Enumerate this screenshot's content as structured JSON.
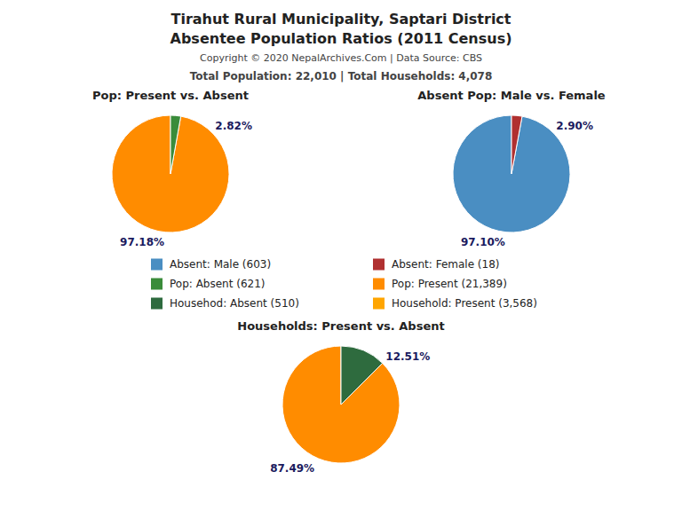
{
  "title": "Tirahut Rural Municipality, Saptari District",
  "subtitle": "Absentee Population Ratios (2011 Census)",
  "annotations": [
    "Copyright © 2020 NepalArchives.Com | Data Source: CBS",
    "Total Population: 22,010 | Total Households: 4,078"
  ],
  "chart_data": [
    {
      "type": "pie",
      "title": "Pop: Present vs. Absent",
      "values": [
        97.18,
        2.82
      ],
      "value_labels": [
        "97.18%",
        "2.82%"
      ],
      "colors": [
        "#FF8C00",
        "#3A8C3A"
      ],
      "data_labels": true
    },
    {
      "type": "pie",
      "title": "Absent Pop: Male vs. Female",
      "values": [
        97.1,
        2.9
      ],
      "value_labels": [
        "97.10%",
        "2.90%"
      ],
      "colors": [
        "#4A8EC2",
        "#B03030"
      ],
      "data_labels": true
    },
    {
      "type": "pie",
      "title": "Households: Present vs. Absent",
      "values": [
        87.49,
        12.51
      ],
      "value_labels": [
        "87.49%",
        "12.51%"
      ],
      "colors": [
        "#FF8C00",
        "#2E6B3E"
      ],
      "data_labels": true
    }
  ],
  "legend_entries": [
    {
      "name": "Absent: Male (603)",
      "color": "#4A8EC2"
    },
    {
      "name": "Absent: Female (18)",
      "color": "#B03030"
    },
    {
      "name": "Pop: Absent (621)",
      "color": "#3A8C3A"
    },
    {
      "name": "Pop: Present (21,389)",
      "color": "#FF8C00"
    },
    {
      "name": "Househod: Absent (510)",
      "color": "#2E6B3E"
    },
    {
      "name": "Household: Present (3,568)",
      "color": "#FFA500"
    }
  ]
}
